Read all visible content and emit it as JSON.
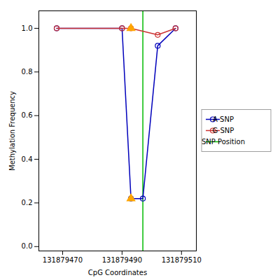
{
  "chart_data": {
    "type": "line",
    "xlabel": "CpG Coordinates",
    "ylabel": "Methylation Frequency",
    "xlim": [
      131879462,
      131879515
    ],
    "ylim": [
      -0.02,
      1.08
    ],
    "xticks": [
      131879470,
      131879490,
      131879510
    ],
    "yticks": [
      {
        "value": 0.0,
        "label": "0.0"
      },
      {
        "value": 0.2,
        "label": "0.2"
      },
      {
        "value": 0.4,
        "label": "0.4"
      },
      {
        "value": 0.6,
        "label": "0.6"
      },
      {
        "value": 0.8,
        "label": "0.8"
      },
      {
        "value": 1.0,
        "label": "1.0"
      }
    ],
    "grid": false,
    "legend": "center right",
    "series": [
      {
        "name": "A SNP",
        "type": "line",
        "color": "#0000bb",
        "marker": "o",
        "x": [
          131879468,
          131879490,
          131879493,
          131879497,
          131879502,
          131879508
        ],
        "values": [
          1.0,
          1.0,
          0.22,
          0.22,
          0.92,
          1.0
        ]
      },
      {
        "name": "G SNP",
        "type": "line",
        "color": "#cc3333",
        "marker": "o",
        "x": [
          131879468,
          131879490,
          131879493,
          131879502,
          131879508
        ],
        "values": [
          1.0,
          1.0,
          1.0,
          0.97,
          1.0
        ]
      },
      {
        "name": "SNP Position",
        "type": "vline",
        "color": "#00bb00",
        "x": 131879497
      },
      {
        "type": "scatter",
        "color": "#FFA500",
        "marker": "triangle",
        "x": [
          131879493,
          131879493
        ],
        "values": [
          1.0,
          0.22
        ]
      }
    ]
  }
}
